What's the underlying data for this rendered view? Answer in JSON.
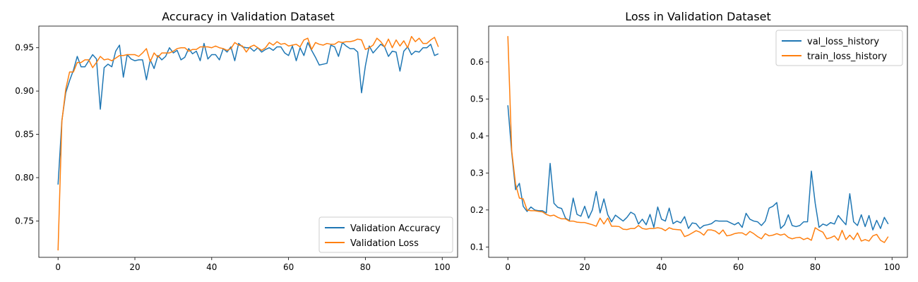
{
  "chart_data": [
    {
      "type": "line",
      "title": "Accuracy in Validation Dataset",
      "xlabel": "",
      "ylabel": "",
      "xlim": [
        -5,
        104
      ],
      "ylim": [
        0.708,
        0.975
      ],
      "x_ticks": [
        0,
        20,
        40,
        60,
        80,
        100
      ],
      "x_tick_labels": [
        "0",
        "20",
        "40",
        "60",
        "80",
        "100"
      ],
      "y_ticks": [
        0.75,
        0.8,
        0.85,
        0.9,
        0.95
      ],
      "y_tick_labels": [
        "0.75",
        "0.80",
        "0.85",
        "0.90",
        "0.95"
      ],
      "grid": false,
      "legend_position": "lower-right",
      "series": [
        {
          "name": "Validation Accuracy",
          "color": "#1f77b4",
          "values": [
            0.792,
            0.866,
            0.898,
            0.912,
            0.924,
            0.94,
            0.928,
            0.928,
            0.935,
            0.942,
            0.937,
            0.879,
            0.927,
            0.931,
            0.928,
            0.946,
            0.953,
            0.916,
            0.942,
            0.937,
            0.935,
            0.936,
            0.936,
            0.913,
            0.936,
            0.926,
            0.941,
            0.936,
            0.94,
            0.95,
            0.944,
            0.947,
            0.936,
            0.939,
            0.949,
            0.943,
            0.946,
            0.935,
            0.955,
            0.937,
            0.942,
            0.942,
            0.936,
            0.949,
            0.945,
            0.951,
            0.935,
            0.955,
            0.951,
            0.95,
            0.95,
            0.946,
            0.95,
            0.945,
            0.948,
            0.95,
            0.947,
            0.951,
            0.951,
            0.944,
            0.941,
            0.952,
            0.935,
            0.95,
            0.941,
            0.956,
            0.947,
            0.939,
            0.93,
            0.931,
            0.932,
            0.953,
            0.951,
            0.94,
            0.956,
            0.952,
            0.949,
            0.949,
            0.945,
            0.898,
            0.929,
            0.952,
            0.944,
            0.949,
            0.954,
            0.951,
            0.94,
            0.946,
            0.945,
            0.923,
            0.946,
            0.951,
            0.942,
            0.946,
            0.945,
            0.95,
            0.95,
            0.954,
            0.941,
            0.943
          ]
        },
        {
          "name": "Validation Loss",
          "color": "#ff7f0e",
          "values": [
            0.716,
            0.865,
            0.902,
            0.922,
            0.922,
            0.933,
            0.933,
            0.936,
            0.936,
            0.927,
            0.933,
            0.94,
            0.936,
            0.937,
            0.935,
            0.938,
            0.941,
            0.941,
            0.942,
            0.942,
            0.942,
            0.94,
            0.944,
            0.949,
            0.934,
            0.944,
            0.939,
            0.944,
            0.944,
            0.944,
            0.946,
            0.949,
            0.95,
            0.95,
            0.946,
            0.948,
            0.948,
            0.951,
            0.951,
            0.951,
            0.95,
            0.952,
            0.95,
            0.949,
            0.947,
            0.949,
            0.956,
            0.953,
            0.952,
            0.945,
            0.951,
            0.953,
            0.95,
            0.947,
            0.95,
            0.956,
            0.953,
            0.957,
            0.954,
            0.955,
            0.952,
            0.953,
            0.954,
            0.951,
            0.959,
            0.961,
            0.948,
            0.956,
            0.954,
            0.953,
            0.955,
            0.954,
            0.954,
            0.957,
            0.956,
            0.957,
            0.957,
            0.958,
            0.96,
            0.959,
            0.948,
            0.95,
            0.953,
            0.961,
            0.957,
            0.951,
            0.96,
            0.95,
            0.959,
            0.952,
            0.958,
            0.95,
            0.963,
            0.957,
            0.961,
            0.955,
            0.955,
            0.959,
            0.962,
            0.951
          ]
        }
      ]
    },
    {
      "type": "line",
      "title": "Loss in Validation Dataset",
      "xlabel": "",
      "ylabel": "",
      "xlim": [
        -5,
        104
      ],
      "ylim": [
        0.072,
        0.697
      ],
      "x_ticks": [
        0,
        20,
        40,
        60,
        80,
        100
      ],
      "x_tick_labels": [
        "0",
        "20",
        "40",
        "60",
        "80",
        "100"
      ],
      "y_ticks": [
        0.1,
        0.2,
        0.3,
        0.4,
        0.5,
        0.6
      ],
      "y_tick_labels": [
        "0.1",
        "0.2",
        "0.3",
        "0.4",
        "0.5",
        "0.6"
      ],
      "grid": false,
      "legend_position": "upper-right",
      "series": [
        {
          "name": "val_loss_history",
          "color": "#1f77b4",
          "values": [
            0.483,
            0.355,
            0.255,
            0.272,
            0.21,
            0.196,
            0.208,
            0.2,
            0.198,
            0.198,
            0.192,
            0.326,
            0.218,
            0.207,
            0.204,
            0.178,
            0.171,
            0.232,
            0.188,
            0.183,
            0.21,
            0.178,
            0.2,
            0.25,
            0.192,
            0.23,
            0.187,
            0.168,
            0.186,
            0.178,
            0.17,
            0.18,
            0.194,
            0.188,
            0.162,
            0.175,
            0.16,
            0.188,
            0.153,
            0.208,
            0.175,
            0.17,
            0.205,
            0.163,
            0.17,
            0.165,
            0.182,
            0.15,
            0.165,
            0.163,
            0.15,
            0.158,
            0.16,
            0.163,
            0.171,
            0.17,
            0.17,
            0.17,
            0.165,
            0.16,
            0.166,
            0.153,
            0.191,
            0.175,
            0.17,
            0.168,
            0.158,
            0.17,
            0.205,
            0.21,
            0.22,
            0.15,
            0.16,
            0.187,
            0.158,
            0.155,
            0.158,
            0.168,
            0.168,
            0.305,
            0.218,
            0.153,
            0.162,
            0.158,
            0.166,
            0.162,
            0.185,
            0.172,
            0.16,
            0.244,
            0.168,
            0.158,
            0.187,
            0.155,
            0.185,
            0.146,
            0.172,
            0.15,
            0.18,
            0.162
          ]
        },
        {
          "name": "train_loss_history",
          "color": "#ff7f0e",
          "values": [
            0.67,
            0.36,
            0.27,
            0.232,
            0.23,
            0.2,
            0.198,
            0.198,
            0.196,
            0.195,
            0.188,
            0.184,
            0.186,
            0.18,
            0.176,
            0.176,
            0.17,
            0.17,
            0.167,
            0.166,
            0.166,
            0.163,
            0.16,
            0.156,
            0.178,
            0.162,
            0.178,
            0.156,
            0.156,
            0.155,
            0.148,
            0.147,
            0.15,
            0.15,
            0.158,
            0.15,
            0.148,
            0.15,
            0.15,
            0.152,
            0.15,
            0.144,
            0.152,
            0.148,
            0.147,
            0.146,
            0.128,
            0.132,
            0.138,
            0.144,
            0.14,
            0.132,
            0.146,
            0.146,
            0.143,
            0.135,
            0.146,
            0.13,
            0.132,
            0.136,
            0.138,
            0.138,
            0.132,
            0.142,
            0.136,
            0.128,
            0.122,
            0.136,
            0.13,
            0.132,
            0.136,
            0.132,
            0.135,
            0.126,
            0.122,
            0.125,
            0.126,
            0.12,
            0.124,
            0.118,
            0.152,
            0.145,
            0.14,
            0.122,
            0.125,
            0.13,
            0.118,
            0.145,
            0.12,
            0.132,
            0.12,
            0.138,
            0.116,
            0.12,
            0.116,
            0.13,
            0.134,
            0.118,
            0.112,
            0.128
          ]
        }
      ]
    }
  ]
}
